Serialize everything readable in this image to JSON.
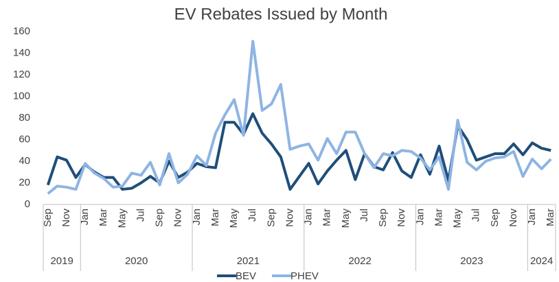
{
  "chart_data": {
    "type": "line",
    "title": "EV Rebates Issued by Month",
    "categories": [
      "Sep",
      null,
      "Nov",
      null,
      "Jan",
      null,
      "Mar",
      null,
      "May",
      null,
      "Jul",
      null,
      "Sep",
      null,
      "Nov",
      null,
      "Jan",
      null,
      "Mar",
      null,
      "May",
      null,
      "Jul",
      null,
      "Sep",
      null,
      "Nov",
      null,
      "Jan",
      null,
      "Mar",
      null,
      "May",
      null,
      "Jul",
      null,
      "Sep",
      null,
      "Nov",
      null,
      "Jan",
      null,
      "Mar",
      null,
      "May",
      null,
      "Jul",
      null,
      "Sep",
      null,
      "Nov",
      null,
      "Jan",
      null,
      "Mar"
    ],
    "x_groups": [
      {
        "label": "2019",
        "span": 4
      },
      {
        "label": "2020",
        "span": 12
      },
      {
        "label": "2021",
        "span": 12
      },
      {
        "label": "2022",
        "span": 12
      },
      {
        "label": "2023",
        "span": 12
      },
      {
        "label": "2024",
        "span": 3
      }
    ],
    "series": [
      {
        "name": "BEV",
        "color": "#1f4e79",
        "values": [
          18,
          44,
          41,
          25,
          37,
          30,
          25,
          25,
          14,
          15,
          20,
          26,
          20,
          40,
          25,
          30,
          38,
          35,
          34,
          76,
          76,
          65,
          84,
          66,
          56,
          44,
          14,
          26,
          38,
          19,
          31,
          41,
          50,
          23,
          47,
          35,
          32,
          48,
          31,
          25,
          46,
          28,
          54,
          22,
          73,
          60,
          41,
          44,
          47,
          47,
          56,
          46,
          57,
          52,
          50
        ]
      },
      {
        "name": "PHEV",
        "color": "#8fb4e3",
        "values": [
          10,
          17,
          16,
          14,
          38,
          29,
          24,
          16,
          17,
          29,
          27,
          39,
          18,
          47,
          20,
          28,
          45,
          36,
          66,
          83,
          97,
          64,
          151,
          87,
          93,
          111,
          51,
          54,
          56,
          41,
          61,
          47,
          67,
          67,
          47,
          34,
          47,
          45,
          50,
          49,
          43,
          32,
          44,
          14,
          78,
          39,
          32,
          40,
          43,
          44,
          49,
          26,
          42,
          33,
          42
        ]
      }
    ],
    "ylim": [
      0,
      160
    ],
    "yticks": [
      0,
      20,
      40,
      60,
      80,
      100,
      120,
      140,
      160
    ],
    "grid": false,
    "legend": "bottom"
  }
}
